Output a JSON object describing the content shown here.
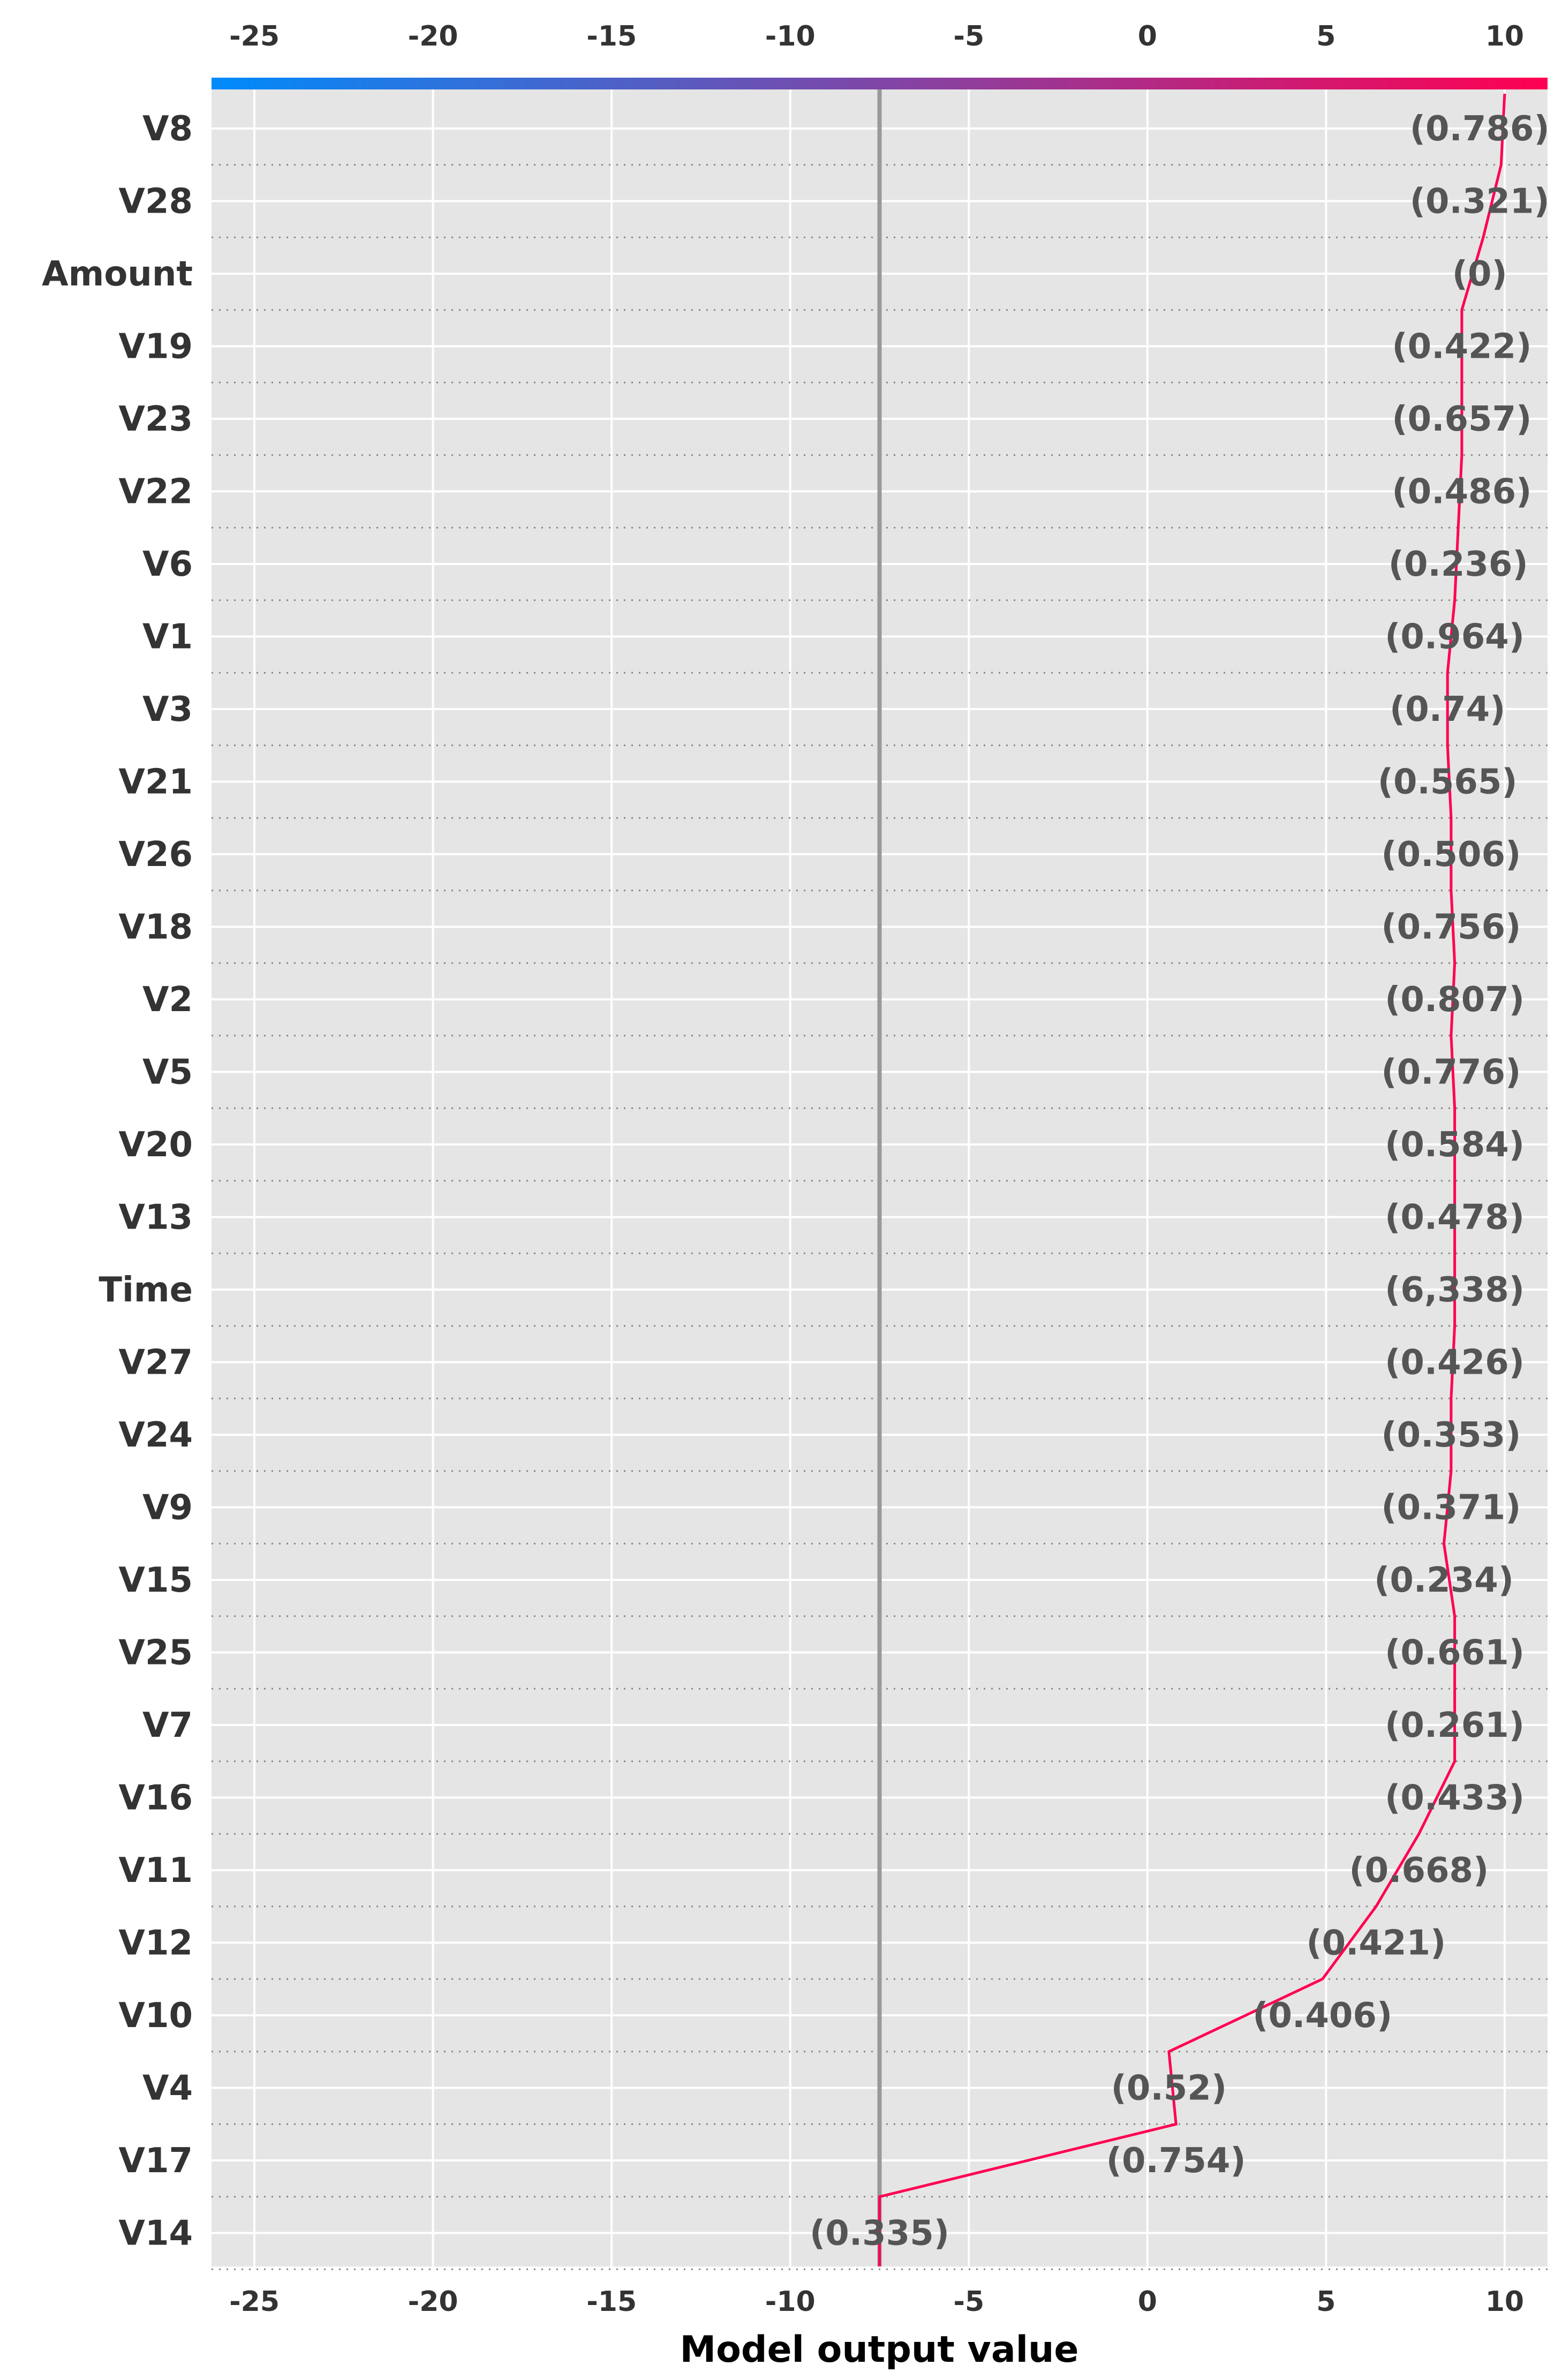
{
  "chart_data": {
    "type": "line",
    "xlabel": "Model output value",
    "xlim": [
      -26.2,
      11.2
    ],
    "xticks": [
      -25,
      -20,
      -15,
      -10,
      -5,
      0,
      5,
      10
    ],
    "xtick_labels": [
      "-25",
      "-20",
      "-15",
      "-10",
      "-5",
      "0",
      "5",
      "10"
    ],
    "base_value": -7.5,
    "final_value": 10.0,
    "colorbar": {
      "from_color": "#008bfb",
      "to_color": "#ff0051"
    },
    "line_color": "#ff0051",
    "background_color": "#e5e5e5",
    "grid": true,
    "features": [
      {
        "name": "V8",
        "value_label": "(0.786)",
        "cum": 10.0
      },
      {
        "name": "V28",
        "value_label": "(0.321)",
        "cum": 9.9
      },
      {
        "name": "Amount",
        "value_label": "(0)",
        "cum": 9.4
      },
      {
        "name": "V19",
        "value_label": "(0.422)",
        "cum": 8.8
      },
      {
        "name": "V23",
        "value_label": "(0.657)",
        "cum": 8.8
      },
      {
        "name": "V22",
        "value_label": "(0.486)",
        "cum": 8.8
      },
      {
        "name": "V6",
        "value_label": "(0.236)",
        "cum": 8.7
      },
      {
        "name": "V1",
        "value_label": "(0.964)",
        "cum": 8.6
      },
      {
        "name": "V3",
        "value_label": "(0.74)",
        "cum": 8.4
      },
      {
        "name": "V21",
        "value_label": "(0.565)",
        "cum": 8.4
      },
      {
        "name": "V26",
        "value_label": "(0.506)",
        "cum": 8.5
      },
      {
        "name": "V18",
        "value_label": "(0.756)",
        "cum": 8.5
      },
      {
        "name": "V2",
        "value_label": "(0.807)",
        "cum": 8.6
      },
      {
        "name": "V5",
        "value_label": "(0.776)",
        "cum": 8.5
      },
      {
        "name": "V20",
        "value_label": "(0.584)",
        "cum": 8.6
      },
      {
        "name": "V13",
        "value_label": "(0.478)",
        "cum": 8.6
      },
      {
        "name": "Time",
        "value_label": "(6,338)",
        "cum": 8.6
      },
      {
        "name": "V27",
        "value_label": "(0.426)",
        "cum": 8.6
      },
      {
        "name": "V24",
        "value_label": "(0.353)",
        "cum": 8.5
      },
      {
        "name": "V9",
        "value_label": "(0.371)",
        "cum": 8.5
      },
      {
        "name": "V15",
        "value_label": "(0.234)",
        "cum": 8.3
      },
      {
        "name": "V25",
        "value_label": "(0.661)",
        "cum": 8.6
      },
      {
        "name": "V7",
        "value_label": "(0.261)",
        "cum": 8.6
      },
      {
        "name": "V16",
        "value_label": "(0.433)",
        "cum": 8.6
      },
      {
        "name": "V11",
        "value_label": "(0.668)",
        "cum": 7.6
      },
      {
        "name": "V12",
        "value_label": "(0.421)",
        "cum": 6.4
      },
      {
        "name": "V10",
        "value_label": "(0.406)",
        "cum": 4.9
      },
      {
        "name": "V4",
        "value_label": "(0.52)",
        "cum": 0.6
      },
      {
        "name": "V17",
        "value_label": "(0.754)",
        "cum": 0.8
      },
      {
        "name": "V14",
        "value_label": "(0.335)",
        "cum": -7.5
      }
    ]
  }
}
